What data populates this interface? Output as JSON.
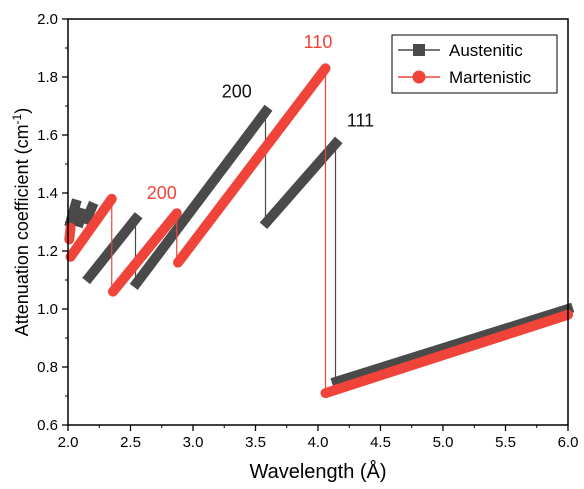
{
  "chart_data": {
    "type": "line",
    "xlabel": "Wavelength (Å)",
    "ylabel_main": "Attenuation coefficient (cm",
    "ylabel_sup": "-1",
    "ylabel_close": ")",
    "xlim": [
      2.0,
      6.0
    ],
    "ylim": [
      0.6,
      2.0
    ],
    "xticks": [
      "2.0",
      "2.5",
      "3.0",
      "3.5",
      "4.0",
      "4.5",
      "5.0",
      "5.5",
      "6.0"
    ],
    "yticks": [
      "0.6",
      "0.8",
      "1.0",
      "1.2",
      "1.4",
      "1.6",
      "1.8",
      "2.0"
    ],
    "legend_position": "top-right",
    "series": [
      {
        "name": "Austenitic",
        "color": "#4a4a4a",
        "marker": "square",
        "segments": [
          [
            [
              2.02,
              1.3
            ],
            [
              2.06,
              1.36
            ]
          ],
          [
            [
              2.09,
              1.3
            ],
            [
              2.11,
              1.33
            ]
          ],
          [
            [
              2.15,
              1.31
            ],
            [
              2.19,
              1.35
            ]
          ],
          [
            [
              2.17,
              1.11
            ],
            [
              2.54,
              1.31
            ]
          ],
          [
            [
              2.55,
              1.09
            ],
            [
              3.58,
              1.68
            ]
          ],
          [
            [
              3.59,
              1.3
            ],
            [
              4.14,
              1.57
            ]
          ],
          [
            [
              4.15,
              0.75
            ],
            [
              6.0,
              1.0
            ]
          ]
        ],
        "drops": [
          [
            2.54,
            1.31,
            1.09
          ],
          [
            3.58,
            1.68,
            1.3
          ],
          [
            4.14,
            1.57,
            0.75
          ]
        ]
      },
      {
        "name": "Martenistic",
        "color": "#f0443a",
        "marker": "circle",
        "segments": [
          [
            [
              2.01,
              1.24
            ],
            [
              2.02,
              1.28
            ]
          ],
          [
            [
              2.02,
              1.18
            ],
            [
              2.35,
              1.38
            ]
          ],
          [
            [
              2.36,
              1.06
            ],
            [
              2.87,
              1.33
            ]
          ],
          [
            [
              2.88,
              1.16
            ],
            [
              4.06,
              1.83
            ]
          ],
          [
            [
              4.06,
              0.71
            ],
            [
              6.0,
              0.98
            ]
          ]
        ],
        "drops": [
          [
            2.35,
            1.38,
            1.06
          ],
          [
            2.87,
            1.33,
            1.16
          ],
          [
            4.06,
            1.83,
            0.71
          ]
        ]
      }
    ],
    "annotations": [
      {
        "text": "110",
        "x": 4.0,
        "y": 1.9,
        "color": "#f0443a"
      },
      {
        "text": "200",
        "x": 3.35,
        "y": 1.73,
        "color": "#111111"
      },
      {
        "text": "111",
        "x": 4.34,
        "y": 1.63,
        "color": "#111111"
      },
      {
        "text": "200",
        "x": 2.75,
        "y": 1.38,
        "color": "#f0443a"
      }
    ]
  }
}
